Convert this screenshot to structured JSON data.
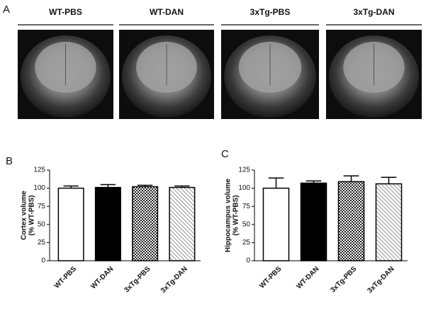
{
  "panel_a": {
    "label": "A",
    "images": [
      "WT-PBS",
      "WT-DAN",
      "3xTg-PBS",
      "3xTg-DAN"
    ]
  },
  "chart_data": [
    {
      "type": "bar",
      "label": "B",
      "y_label": [
        "Cortex volume",
        "(% WT-PBS)"
      ],
      "categories": [
        "WT-PBS",
        "WT-DAN",
        "3xTg-PBS",
        "3xTg-DAN"
      ],
      "values": [
        100,
        101,
        102,
        101
      ],
      "errors": [
        3,
        4,
        2,
        2
      ],
      "patterns": [
        "white",
        "solid",
        "checker",
        "hatch"
      ],
      "ylim": [
        0,
        125
      ],
      "yticks": [
        0,
        25,
        50,
        75,
        100,
        125
      ]
    },
    {
      "type": "bar",
      "label": "C",
      "y_label": [
        "Hippocampus volume",
        "(% WT-PBS)"
      ],
      "categories": [
        "WT-PBS",
        "WT-DAN",
        "3xTg-PBS",
        "3xTg-DAN"
      ],
      "values": [
        100,
        107,
        109,
        106
      ],
      "errors": [
        14,
        3,
        8,
        9
      ],
      "patterns": [
        "white",
        "solid",
        "checker",
        "hatch"
      ],
      "ylim": [
        0,
        125
      ],
      "yticks": [
        0,
        25,
        50,
        75,
        100,
        125
      ]
    }
  ]
}
